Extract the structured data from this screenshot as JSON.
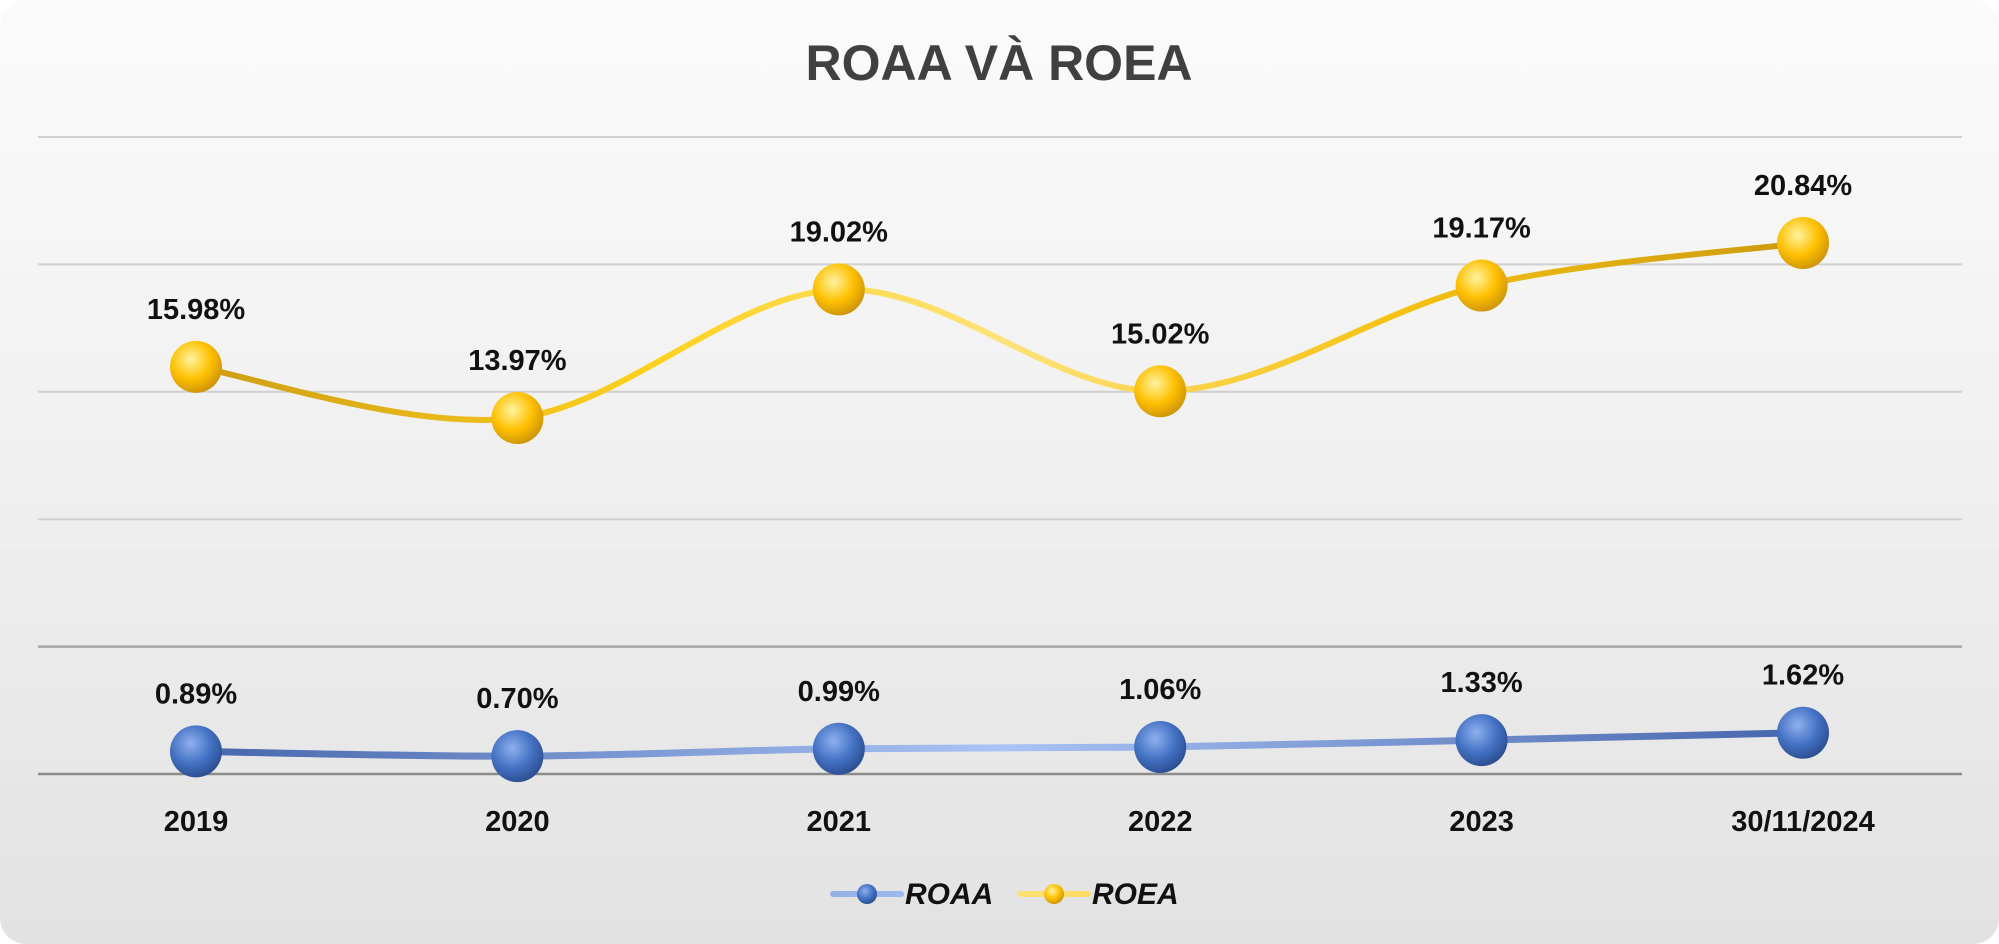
{
  "chart_data": {
    "type": "line",
    "title": "ROAA VÀ ROEA",
    "categories": [
      "2019",
      "2020",
      "2021",
      "2022",
      "2023",
      "30/11/2024"
    ],
    "series": [
      {
        "name": "ROAA",
        "values": [
          0.89,
          0.7,
          0.99,
          1.06,
          1.33,
          1.62
        ],
        "labels": [
          "0.89%",
          "0.70%",
          "0.99%",
          "1.06%",
          "1.33%",
          "1.62%"
        ],
        "color": "#4472C4"
      },
      {
        "name": "ROEA",
        "values": [
          15.98,
          13.97,
          19.02,
          15.02,
          19.17,
          20.84
        ],
        "labels": [
          "15.98%",
          "13.97%",
          "19.02%",
          "15.02%",
          "19.17%",
          "20.84%"
        ],
        "color": "#FFC000"
      }
    ],
    "ylim": [
      0,
      25
    ],
    "grid": true,
    "y_tick_labels_shown": false,
    "legend_position": "bottom",
    "smooth": true
  }
}
